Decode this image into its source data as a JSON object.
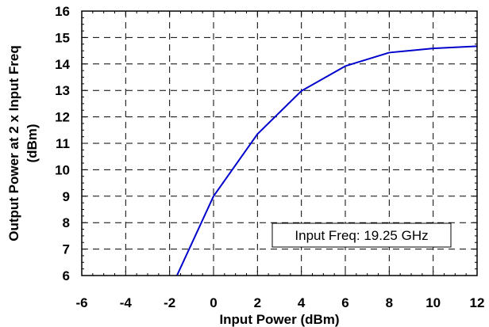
{
  "chart_data": {
    "type": "line",
    "title": "",
    "xlabel": "Input Power (dBm)",
    "ylabel_lines": [
      "Output Power at 2 x Input Freq",
      "(dBm)"
    ],
    "xlim": [
      -6,
      12
    ],
    "ylim": [
      6,
      16
    ],
    "xticks": [
      -6,
      -4,
      -2,
      0,
      2,
      4,
      6,
      8,
      10,
      12
    ],
    "yticks": [
      6,
      7,
      8,
      9,
      10,
      11,
      12,
      13,
      14,
      15,
      16
    ],
    "grid": true,
    "annotation": "Input Freq: 19.25 GHz",
    "series": [
      {
        "color": "#0000cc",
        "x": [
          -2,
          0,
          2,
          4,
          6,
          8,
          10,
          12
        ],
        "y": [
          5.4,
          9.0,
          11.35,
          12.98,
          13.92,
          14.43,
          14.59,
          14.67
        ]
      }
    ]
  }
}
